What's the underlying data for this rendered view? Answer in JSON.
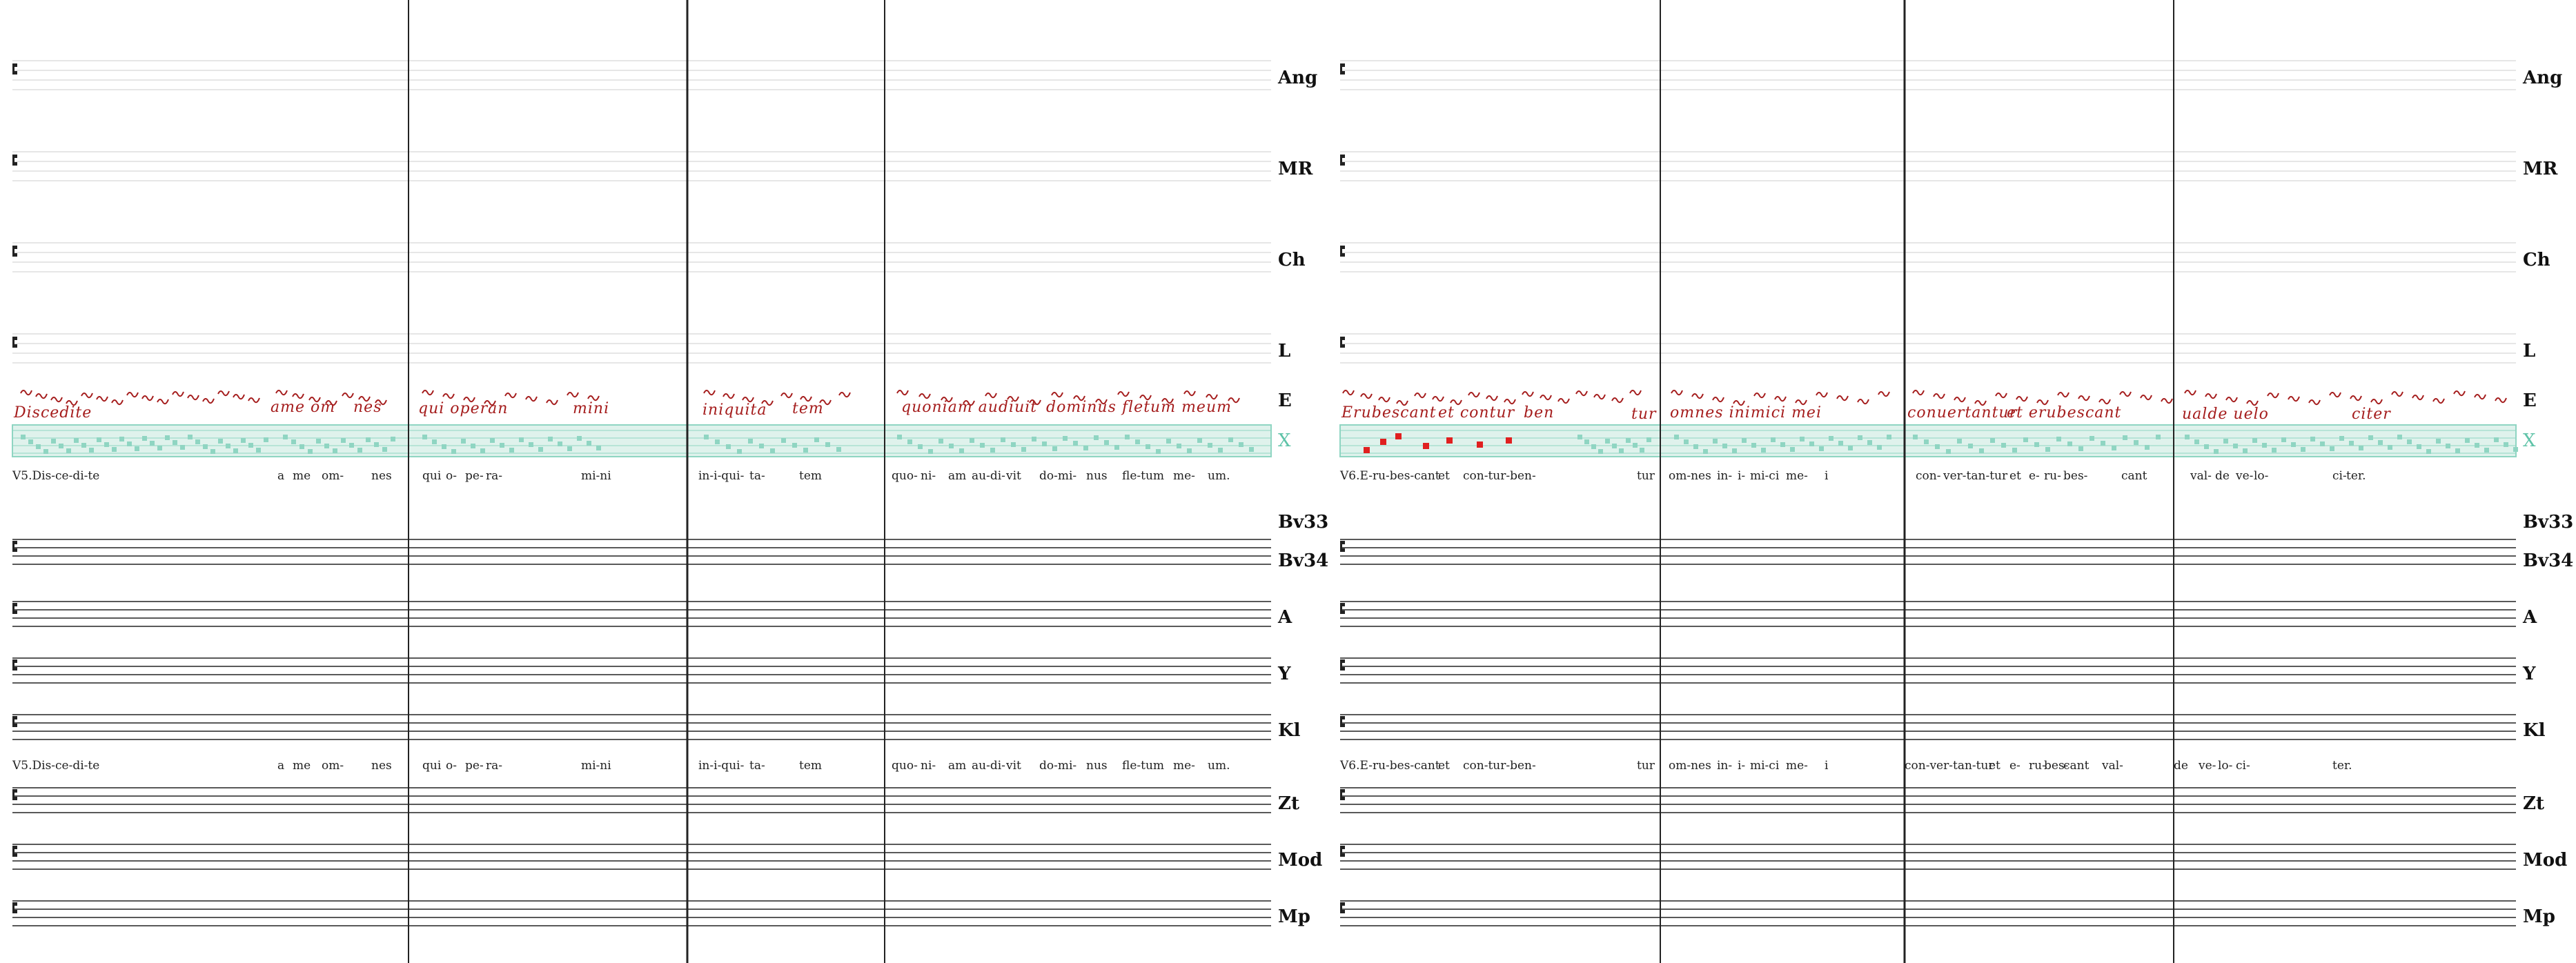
{
  "colors": {
    "manuscript": "#a51d1d",
    "highlight_band": "#dff2ec",
    "highlight_border": "#8fd5c2",
    "square_note": "#8fd5c2",
    "red_note": "#e02020",
    "staff_faint": "#d8d8d8",
    "staff_dark": "#222222"
  },
  "icons": {
    "clef": "c-clef-icon"
  },
  "panels": [
    {
      "id": "left",
      "signatures": {
        "ang": "Ang",
        "mr": "MR",
        "ch": "Ch",
        "l": "L",
        "e": "E",
        "x": "X",
        "bv33": "Bv33",
        "bv34": "Bv34",
        "a": "A",
        "y": "Y",
        "kl": "Kl",
        "zt": "Zt",
        "mod": "Mod",
        "mp": "Mp"
      },
      "lyrics_top": [
        "V5.Dis-ce-di-te",
        "a",
        "me",
        "om-",
        "nes",
        "qui",
        "o-",
        "pe-",
        "ra-",
        "mi-ni",
        "in-i-qui-",
        "ta-",
        "tem",
        "quo-",
        "ni-",
        "am",
        "au-di-",
        "vit",
        "do-mi-",
        "nus",
        "fle-tum",
        "me-",
        "um."
      ],
      "lyrics_bottom": [
        "V5.Dis-ce-di-te",
        "a",
        "me",
        "om-",
        "nes",
        "qui",
        "o-",
        "pe-",
        "ra-",
        "mi-ni",
        "in-i-qui-",
        "ta-",
        "tem",
        "quo-",
        "ni-",
        "am",
        "au-di-",
        "vit",
        "do-mi-",
        "nus",
        "fle-tum",
        "me-",
        "um."
      ],
      "manuscript_text": [
        "Discedite",
        "ame om",
        "nes",
        "qui operan",
        "mini",
        "iniquita",
        "tem",
        "quoniam audiuit",
        "dominus",
        "fletum meum"
      ]
    },
    {
      "id": "right",
      "signatures": {
        "ang": "Ang",
        "mr": "MR",
        "ch": "Ch",
        "l": "L",
        "e": "E",
        "x": "X",
        "bv33": "Bv33",
        "bv34": "Bv34",
        "a": "A",
        "y": "Y",
        "kl": "Kl",
        "zt": "Zt",
        "mod": "Mod",
        "mp": "Mp"
      },
      "lyrics_top": [
        "V6.E-ru-bes-cant",
        "et",
        "con-tur-ben-",
        "tur",
        "om-nes",
        "in-",
        "i-",
        "mi-ci",
        "me-",
        "i",
        "con-",
        "ver-tan-tur",
        "et",
        "e-",
        "ru-",
        "bes-",
        "cant",
        "val-",
        "de",
        "ve-",
        "lo-",
        "ci-",
        "ter."
      ],
      "lyrics_bottom": [
        "V6.E-ru-bes-cant",
        "et",
        "con-tur-ben-",
        "tur",
        "om-nes",
        "in-",
        "i-",
        "mi-ci",
        "me-",
        "i",
        "con-ver-tan-tur",
        "et",
        "e-",
        "ru-",
        "bes-",
        "cant",
        "val-",
        "de",
        "ve-",
        "lo-",
        "ci-",
        "ter."
      ],
      "manuscript_text": [
        "Erubescant",
        "et contur",
        "ben",
        "tur",
        "omnes inimici mei",
        "conuertantur",
        "et erubescant",
        "ualde uelo",
        "citer"
      ]
    }
  ]
}
